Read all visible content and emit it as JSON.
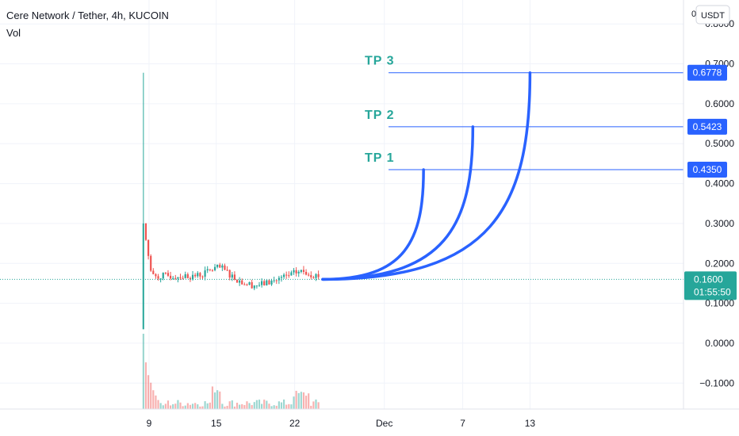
{
  "header": {
    "title": "Cere Network / Tether, 4h, KUCOIN",
    "volume_label": "Vol"
  },
  "price_scale": {
    "unit_button": "USDT",
    "clipped_top_label": "0"
  },
  "colors": {
    "up": "#26a69a",
    "down": "#ef5350",
    "drawing": "#2962ff",
    "tp_text": "#26a69a",
    "grid": "#f0f3fa",
    "current_price_line": "#26a69a"
  },
  "chart_data": {
    "type": "candlestick",
    "title": "Cere Network / Tether, 4h, KUCOIN",
    "y_tick_labels": [
      "0.8000",
      "0.7000",
      "0.6000",
      "0.5000",
      "0.4000",
      "0.3000",
      "0.2000",
      "0.1000",
      "0.0000",
      "−0.1000"
    ],
    "y_ticks": [
      0.8,
      0.7,
      0.6,
      0.5,
      0.4,
      0.3,
      0.2,
      0.1,
      0.0,
      -0.1
    ],
    "ylim": [
      -0.165,
      0.86
    ],
    "x_tick_labels": [
      "9",
      "15",
      "22",
      "Dec",
      "7",
      "13"
    ],
    "x_ticks_day": [
      9,
      15,
      22,
      30,
      37,
      43
    ],
    "x_range_day": [
      -4.3,
      56.7
    ],
    "grid": true,
    "current_price": {
      "label": "0.1600",
      "value": 0.16,
      "countdown": "01:55:50"
    },
    "price_levels": [
      {
        "label": "0.6778",
        "value": 0.6778,
        "name": "TP 3"
      },
      {
        "label": "0.5423",
        "value": 0.5423,
        "name": "TP 2"
      },
      {
        "label": "0.4350",
        "value": 0.435,
        "name": "TP 1"
      }
    ],
    "target_labels": [
      "TP 3",
      "TP 2",
      "TP 1"
    ],
    "projection_start": {
      "day": 24.5,
      "value": 0.16
    },
    "projection_ends": [
      {
        "day": 43.0,
        "value": 0.6778
      },
      {
        "day": 37.9,
        "value": 0.5423
      },
      {
        "day": 33.5,
        "value": 0.435
      }
    ],
    "candles_summary": {
      "start_day": 8.5,
      "end_day": 24.2,
      "spike_high": 0.6778,
      "spike_low": 0.035,
      "first_candle_open": 0.035,
      "first_candle_close": 0.3,
      "settled_range": [
        0.13,
        0.21
      ]
    },
    "volume_summary": {
      "spike_value": 1.0,
      "relative_levels": [
        0.62,
        0.45,
        0.35,
        0.25,
        0.18,
        0.12,
        0.08,
        0.05
      ]
    }
  }
}
